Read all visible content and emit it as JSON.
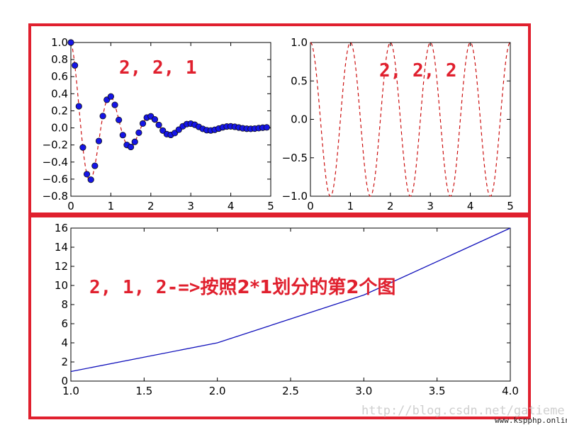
{
  "colors": {
    "highlight_box": "#e0202e",
    "annotation": "#e0202e",
    "damped_line": "#cc1111",
    "marker_fill": "#1515e6",
    "marker_edge": "#111111",
    "cos_line": "#cc1111",
    "line_series": "#1111bb"
  },
  "annotations": {
    "sub1": "2, 2, 1",
    "sub2": "2, 2, 2",
    "sub3_prefix": "2, 1, 2-=>",
    "sub3_text": "按照2*1划分的第2个图"
  },
  "watermark": "http://blog.csdn.net/gatieme",
  "footer": "www.kspphp.online",
  "chart_data": [
    {
      "type": "scatter",
      "overlay": "line",
      "function": "exp(-t)*cos(2*pi*t)",
      "x_range": [
        0,
        4.9
      ],
      "x_step": 0.1,
      "xlim": [
        0,
        5
      ],
      "ylim": [
        -0.8,
        1.0
      ],
      "xticks": [
        "0",
        "1",
        "2",
        "3",
        "4",
        "5"
      ],
      "yticks": [
        "−0.8",
        "−0.6",
        "−0.4",
        "−0.2",
        "0.0",
        "0.2",
        "0.4",
        "0.6",
        "0.8",
        "1.0"
      ],
      "marker": "circle",
      "line_style": "dashed"
    },
    {
      "type": "line",
      "function": "cos(2*pi*t)",
      "x_range": [
        0,
        5
      ],
      "xlim": [
        0,
        5
      ],
      "ylim": [
        -1.0,
        1.0
      ],
      "xticks": [
        "0",
        "1",
        "2",
        "3",
        "4",
        "5"
      ],
      "yticks": [
        "−1.0",
        "−0.5",
        "0.0",
        "0.5",
        "1.0"
      ],
      "line_style": "dashed"
    },
    {
      "type": "line",
      "x": [
        1,
        2,
        3,
        4
      ],
      "y": [
        1,
        4,
        9,
        16
      ],
      "xlim": [
        1.0,
        4.0
      ],
      "ylim": [
        0,
        16
      ],
      "xticks": [
        "1.0",
        "1.5",
        "2.0",
        "2.5",
        "3.0",
        "3.5",
        "4.0"
      ],
      "yticks": [
        "0",
        "2",
        "4",
        "6",
        "8",
        "10",
        "12",
        "14",
        "16"
      ],
      "line_style": "solid"
    }
  ]
}
